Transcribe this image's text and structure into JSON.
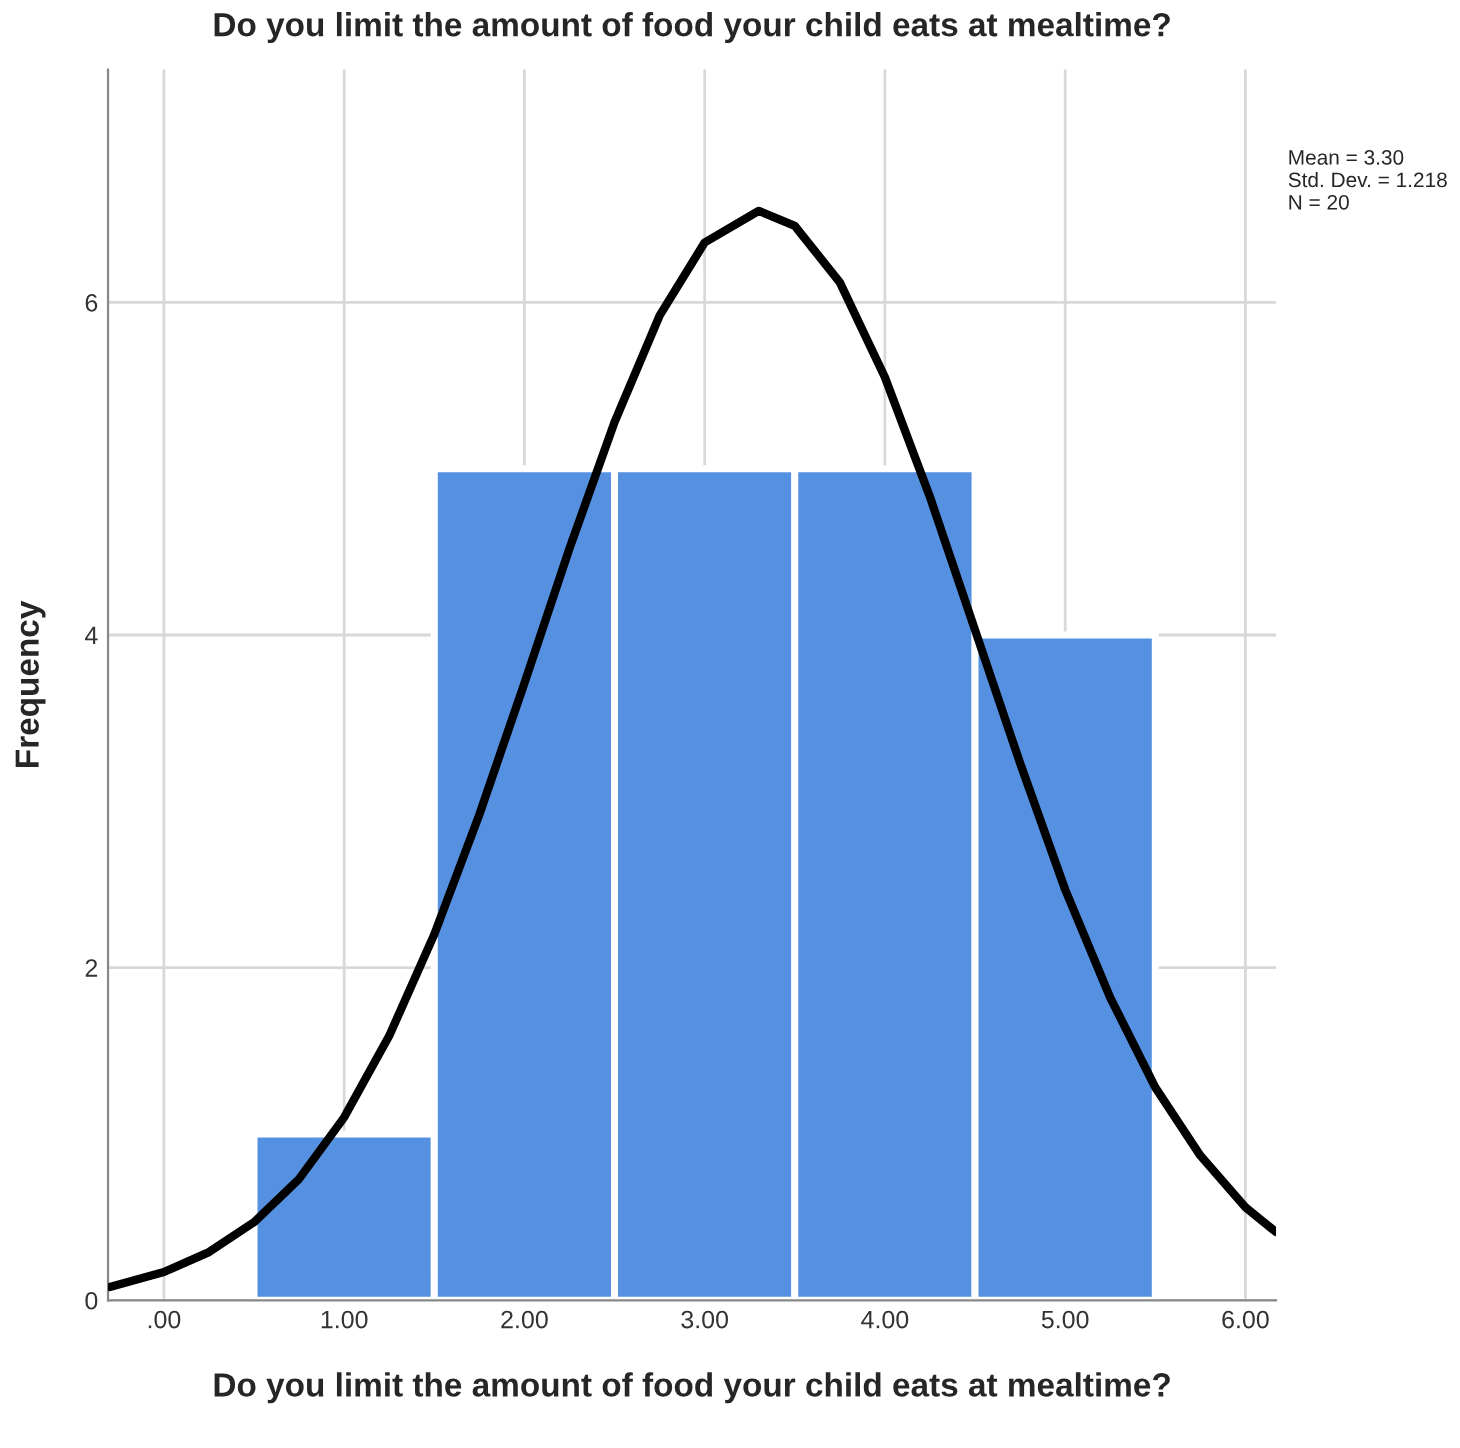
{
  "chart_data": {
    "type": "histogram",
    "title": "Do you limit the amount of food your child eats at mealtime?",
    "xlabel": "Do you limit the amount of food your child eats at mealtime?",
    "ylabel": "Frequency",
    "bins": [
      0.5,
      1.5,
      2.5,
      3.5,
      4.5,
      5.5
    ],
    "values": [
      1,
      5,
      5,
      5,
      4
    ],
    "color": "#5591e0",
    "series": [
      {
        "type": "line",
        "color": "#000000",
        "x": [
          -0.3,
          0,
          0.25,
          0.5,
          0.75,
          1,
          1.25,
          1.5,
          1.75,
          2,
          2.25,
          2.5,
          2.75,
          3,
          3.3,
          3.5,
          3.75,
          4,
          4.25,
          4.5,
          4.75,
          5,
          5.25,
          5.5,
          5.75,
          6,
          6.17
        ],
        "values": [
          0.08,
          0.17,
          0.29,
          0.47,
          0.73,
          1.1,
          1.59,
          2.2,
          2.92,
          3.71,
          4.52,
          5.28,
          5.92,
          6.36,
          6.55,
          6.46,
          6.12,
          5.55,
          4.83,
          4.03,
          3.23,
          2.47,
          1.82,
          1.28,
          0.87,
          0.56,
          0.41
        ]
      }
    ],
    "xlim": [
      -0.31,
      6.17
    ],
    "ylim": [
      0,
      7.4
    ],
    "xticks": [
      {
        "value": 0,
        "label": ".00"
      },
      {
        "value": 1,
        "label": "1.00"
      },
      {
        "value": 2,
        "label": "2.00"
      },
      {
        "value": 3,
        "label": "3.00"
      },
      {
        "value": 4,
        "label": "4.00"
      },
      {
        "value": 5,
        "label": "5.00"
      },
      {
        "value": 6,
        "label": "6.00"
      }
    ],
    "yticks": [
      0,
      2,
      4,
      6
    ],
    "grid": true,
    "annotations": [
      "Mean = 3.30\nStd. Dev. = 1.218\nN = 20"
    ]
  }
}
